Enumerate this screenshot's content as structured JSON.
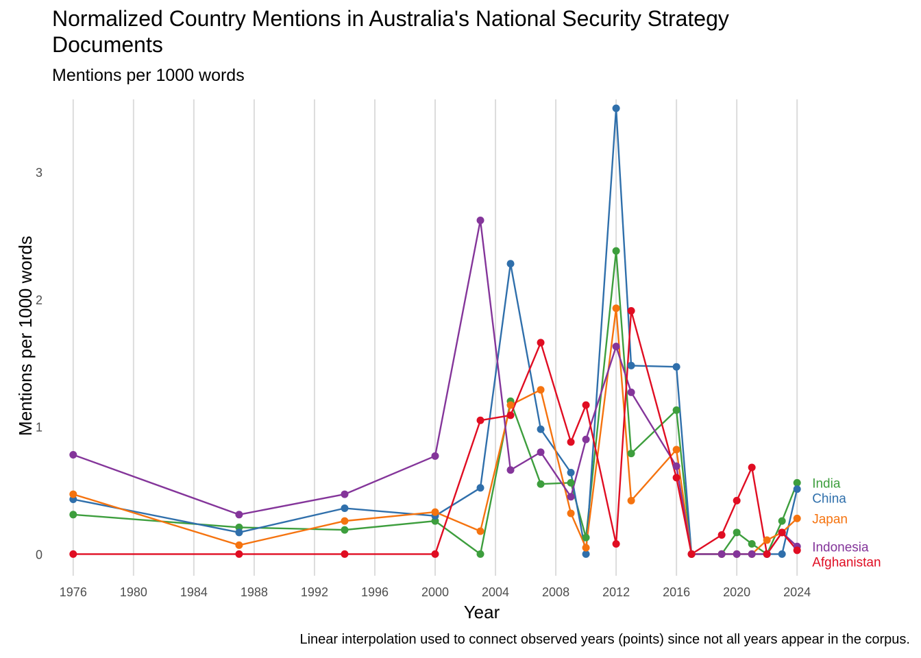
{
  "chart_data": {
    "type": "line",
    "title": "Normalized Country Mentions in Australia's National Security Strategy Documents",
    "subtitle": "Mentions per 1000 words",
    "xlabel": "Year",
    "ylabel": "Mentions per 1000 words",
    "caption": "Linear interpolation used to connect observed years (points) since not all years appear in the corpus.",
    "xlim": [
      1974.6,
      2025.4
    ],
    "ylim": [
      -0.17,
      3.57
    ],
    "x_ticks": [
      1976,
      1980,
      1984,
      1988,
      1992,
      1996,
      2000,
      2004,
      2008,
      2012,
      2016,
      2020,
      2024
    ],
    "y_ticks": [
      0,
      1,
      2,
      3
    ],
    "grid": "vertical",
    "legend": "direct labels at line ends",
    "x": [
      1976,
      1987,
      1994,
      2000,
      2003,
      2005,
      2007,
      2009,
      2010,
      2012,
      2013,
      2016,
      2017,
      2019,
      2020,
      2021,
      2022,
      2023,
      2024
    ],
    "series": [
      {
        "name": "India",
        "color": "#3d9e3d",
        "values": [
          0.31,
          0.21,
          0.19,
          0.26,
          0.0,
          1.2,
          0.55,
          0.56,
          0.13,
          2.38,
          0.79,
          1.13,
          0.0,
          0.0,
          0.17,
          0.08,
          0.0,
          0.26,
          0.56
        ]
      },
      {
        "name": "China",
        "color": "#2f6fab",
        "values": [
          0.43,
          0.17,
          0.36,
          0.3,
          0.52,
          2.28,
          0.98,
          0.64,
          0.0,
          3.5,
          1.48,
          1.47,
          0.0,
          0.0,
          0.0,
          0.0,
          0.0,
          0.0,
          0.51
        ]
      },
      {
        "name": "Japan",
        "color": "#f5730f",
        "values": [
          0.47,
          0.07,
          0.26,
          0.33,
          0.18,
          1.17,
          1.29,
          0.32,
          0.05,
          1.93,
          0.42,
          0.82,
          0.0,
          0.0,
          0.0,
          0.0,
          0.11,
          0.17,
          0.28
        ]
      },
      {
        "name": "Indonesia",
        "color": "#84359a",
        "values": [
          0.78,
          0.31,
          0.47,
          0.77,
          2.62,
          0.66,
          0.8,
          0.45,
          0.9,
          1.63,
          1.27,
          0.69,
          0.0,
          0.0,
          0.0,
          0.0,
          0.0,
          0.17,
          0.06
        ]
      },
      {
        "name": "Afghanistan",
        "color": "#e00d22",
        "values": [
          0.0,
          0.0,
          0.0,
          0.0,
          1.05,
          1.09,
          1.66,
          0.88,
          1.17,
          0.08,
          1.91,
          0.6,
          0.0,
          0.15,
          0.42,
          0.68,
          0.0,
          0.17,
          0.03
        ]
      }
    ]
  }
}
